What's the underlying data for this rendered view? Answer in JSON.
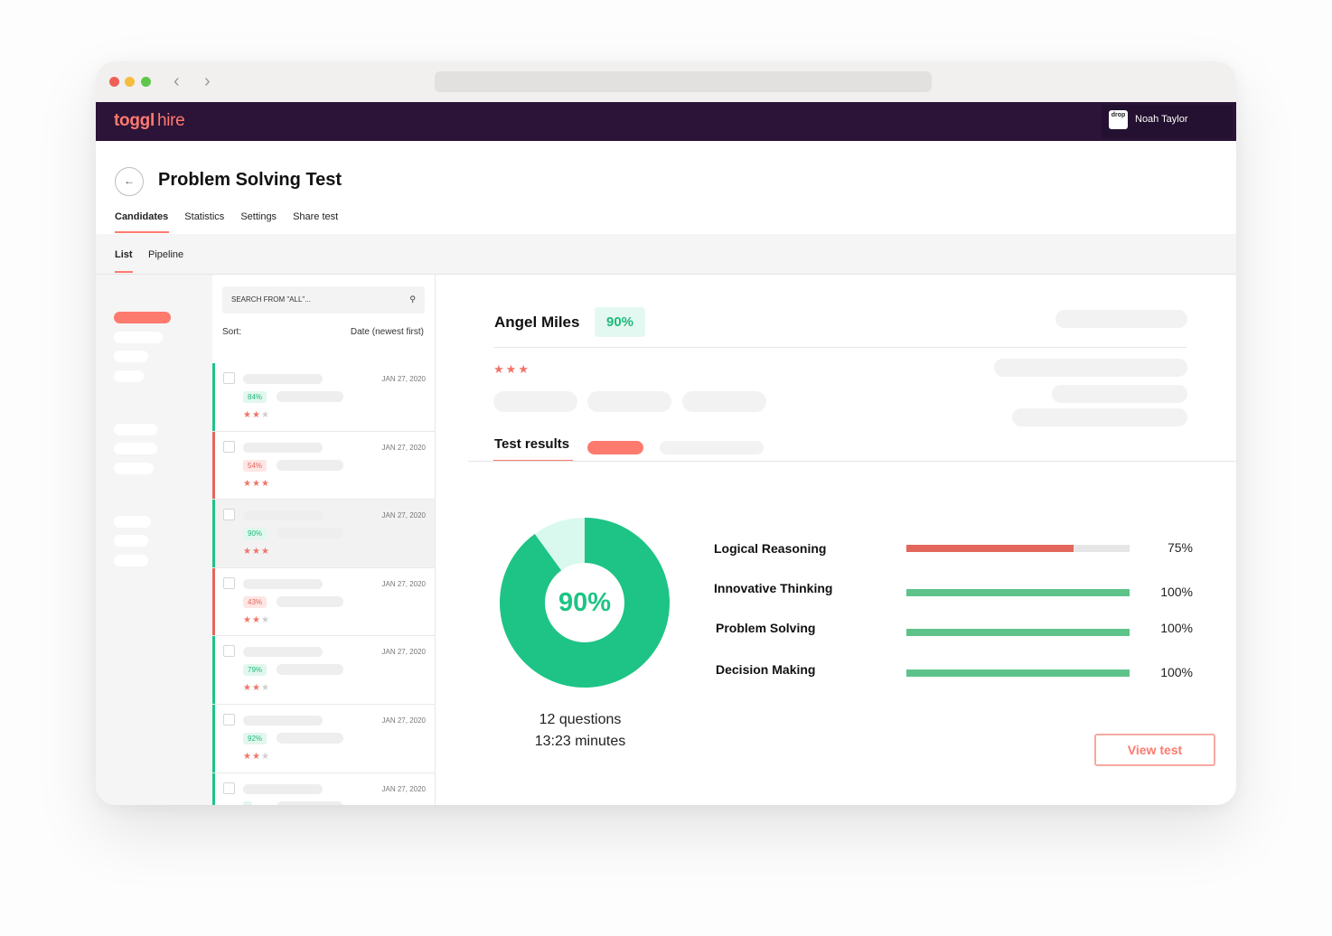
{
  "brand": {
    "logo_bold": "toggl",
    "logo_light": "hire"
  },
  "user": {
    "company_logo_text": "drop",
    "name": "Noah Taylor"
  },
  "page": {
    "title": "Problem Solving Test"
  },
  "tabs": [
    "Candidates",
    "Statistics",
    "Settings",
    "Share test"
  ],
  "subtabs": [
    "List",
    "Pipeline"
  ],
  "search": {
    "placeholder": "SEARCH FROM \"ALL\"..."
  },
  "sort": {
    "label": "Sort:",
    "value": "Date (newest first)"
  },
  "candidates": [
    {
      "date": "JAN 27, 2020",
      "score": "84%",
      "status": "good",
      "stars": 2
    },
    {
      "date": "JAN 27, 2020",
      "score": "54%",
      "status": "bad",
      "stars": 3
    },
    {
      "date": "JAN 27, 2020",
      "score": "90%",
      "status": "good",
      "stars": 3,
      "selected": true
    },
    {
      "date": "JAN 27, 2020",
      "score": "43%",
      "status": "bad",
      "stars": 2
    },
    {
      "date": "JAN 27, 2020",
      "score": "79%",
      "status": "good",
      "stars": 2
    },
    {
      "date": "JAN 27, 2020",
      "score": "92%",
      "status": "good",
      "stars": 2
    },
    {
      "date": "JAN 27, 2020",
      "score": "",
      "status": "good",
      "stars": 0
    }
  ],
  "detail": {
    "name": "Angel Miles",
    "score": "90%",
    "stars": 3,
    "tab_label": "Test results",
    "donut": {
      "value": 0.9,
      "label": "90%",
      "color": "#1ec485",
      "remainder_color": "#d9f9ee"
    },
    "questions": "12 questions",
    "duration": "13:23 minutes",
    "skills": [
      {
        "name": "Logical Reasoning",
        "value": 75,
        "label": "75%",
        "color": "#e2665c"
      },
      {
        "name": "Innovative Thinking",
        "value": 100,
        "label": "100%",
        "color": "#5ec38a"
      },
      {
        "name": "Problem Solving",
        "value": 100,
        "label": "100%",
        "color": "#5ec38a"
      },
      {
        "name": "Decision Making",
        "value": 100,
        "label": "100%",
        "color": "#5ec38a"
      }
    ],
    "view_button": "View test"
  },
  "colors": {
    "accent": "#fd7a6e",
    "topbar": "#2c1338",
    "good": "#1ec485",
    "bad": "#e2665c"
  }
}
